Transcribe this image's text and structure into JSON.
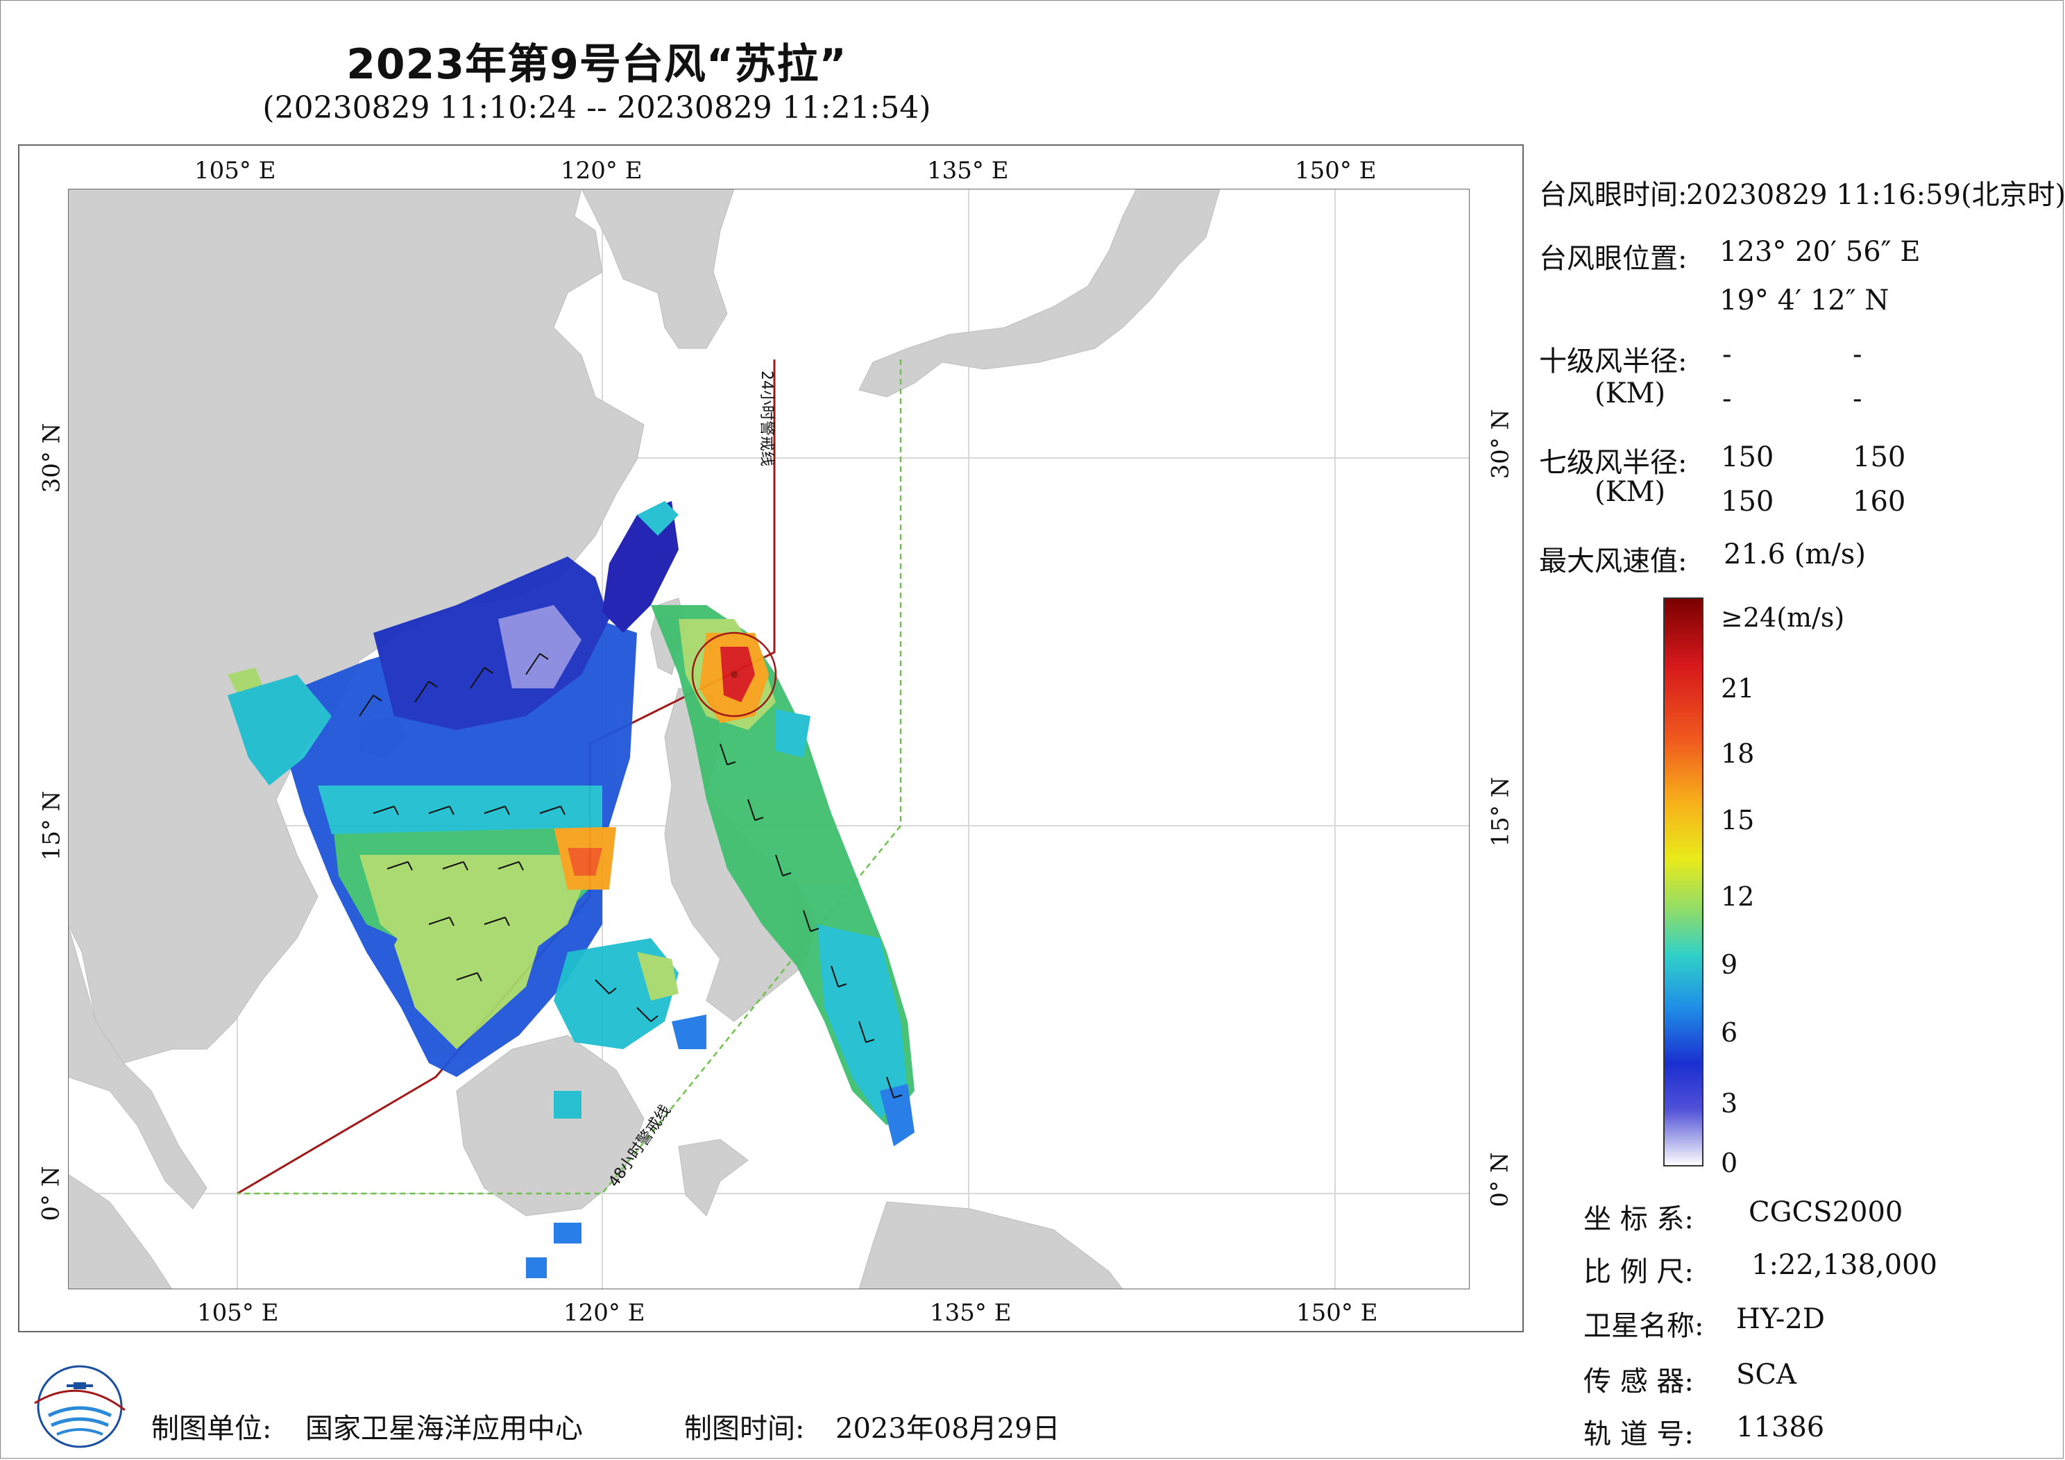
{
  "title": "2023年第9号台风“苏拉”",
  "subtitle": "(20230829  11:10:24 -- 20230829  11:21:54)",
  "axes": {
    "lon_top": [
      "105° E",
      "120° E",
      "135° E",
      "150° E"
    ],
    "lon_bottom": [
      "105° E",
      "120° E",
      "135° E",
      "150° E"
    ],
    "lat_left": [
      "30° N",
      "15° N",
      "0° N"
    ],
    "lat_right": [
      "30° N",
      "15° N",
      "0° N"
    ]
  },
  "map_labels": {
    "line24": "24小时警戒线",
    "line48": "48小时警戒线"
  },
  "info": {
    "eye_time_label": "台风眼时间:",
    "eye_time_value": "20230829  11:16:59(北京时)",
    "eye_pos_label": "台风眼位置:",
    "eye_lon": "123° 20′ 56″ E",
    "eye_lat": "19° 4′ 12″ N",
    "r10_label": "十级风半径:",
    "r10_unit": "(KM)",
    "r10_values": [
      "-",
      "-",
      "-",
      "-"
    ],
    "r7_label": "七级风半径:",
    "r7_unit": "(KM)",
    "r7_values": [
      "150",
      "150",
      "150",
      "160"
    ],
    "max_wind_label": "最大风速值:",
    "max_wind_value": "21.6  (m/s)"
  },
  "colorbar": {
    "labels": [
      "≥24(m/s)",
      "21",
      "18",
      "15",
      "12",
      "9",
      "6",
      "3",
      "0"
    ],
    "colors": [
      "#8b0000",
      "#d7191c",
      "#f05a1e",
      "#f7a11a",
      "#f2e30f",
      "#a6d96a",
      "#3fbf6f",
      "#1fbfd0",
      "#1e78e6",
      "#1f3fd6",
      "#1b1bb0",
      "#8a8ae0",
      "#ffffff"
    ]
  },
  "meta": {
    "crs_label": "坐 标 系:",
    "crs_value": "CGCS2000",
    "scale_label": "比 例 尺:",
    "scale_value": "1:22,138,000",
    "satellite_label": "卫星名称:",
    "satellite_value": "HY-2D",
    "sensor_label": "传 感 器:",
    "sensor_value": "SCA",
    "orbit_label": "轨 道 号:",
    "orbit_value": "11386"
  },
  "footer": {
    "maker_label": "制图单位:",
    "maker_value": "国家卫星海洋应用中心",
    "date_label": "制图时间:",
    "date_value": "2023年08月29日"
  },
  "colors": {
    "land": "#cfcfcf",
    "ocean": "#ffffff",
    "warning24": "#a01818",
    "warning48": "#6cc24a"
  }
}
